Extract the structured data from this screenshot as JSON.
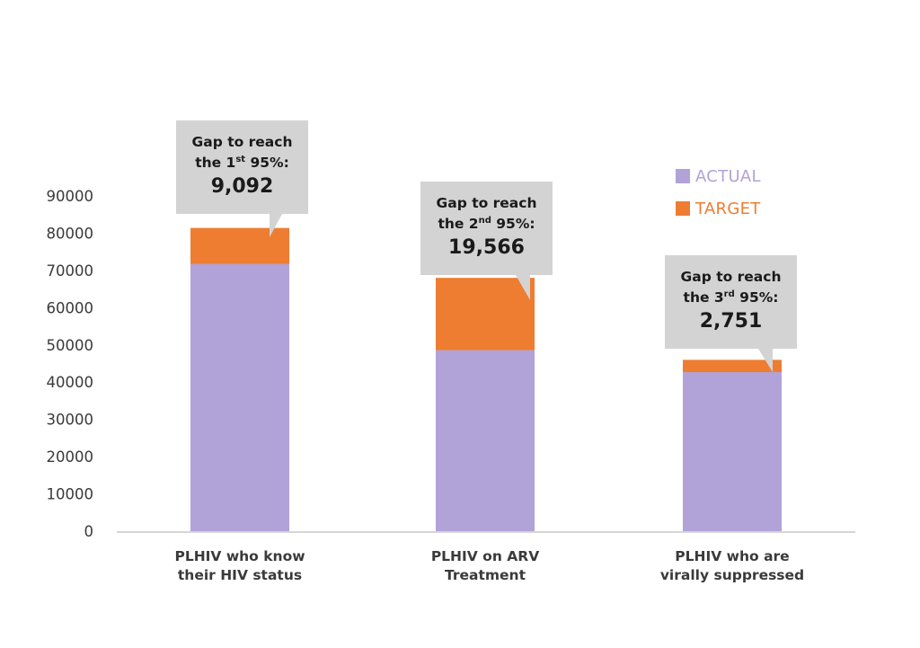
{
  "colors": {
    "actual": "#b1a2d8",
    "target": "#ee7d31",
    "callout_bg": "#d3d3d3",
    "axis": "#bdbdbd"
  },
  "legend": {
    "actual": "ACTUAL",
    "target": "TARGET"
  },
  "callouts": [
    {
      "line1": "Gap to reach",
      "line2_pre": "the 1",
      "line2_sup": "st",
      "line2_post": " 95%:",
      "value": "9,092"
    },
    {
      "line1": "Gap to reach",
      "line2_pre": "the 2",
      "line2_sup": "nd",
      "line2_post": " 95%:",
      "value": "19,566"
    },
    {
      "line1": "Gap to reach",
      "line2_pre": "the 3",
      "line2_sup": "rd",
      "line2_post": " 95%:",
      "value": "2,751"
    }
  ],
  "chart_data": {
    "type": "bar",
    "stacked": true,
    "categories": [
      [
        "PLHIV who know",
        "their HIV status"
      ],
      [
        "PLHIV on ARV",
        "Treatment"
      ],
      [
        "PLHIV who are",
        "virally suppressed"
      ]
    ],
    "series": [
      {
        "name": "ACTUAL",
        "values": [
          71700,
          48600,
          42700
        ]
      },
      {
        "name": "TARGET",
        "values": [
          9700,
          19400,
          3300
        ]
      }
    ],
    "yticks": [
      0,
      10000,
      20000,
      30000,
      40000,
      50000,
      60000,
      70000,
      80000,
      90000
    ],
    "ylim": [
      0,
      90000
    ],
    "grid": false,
    "legend_position": "top-right"
  }
}
